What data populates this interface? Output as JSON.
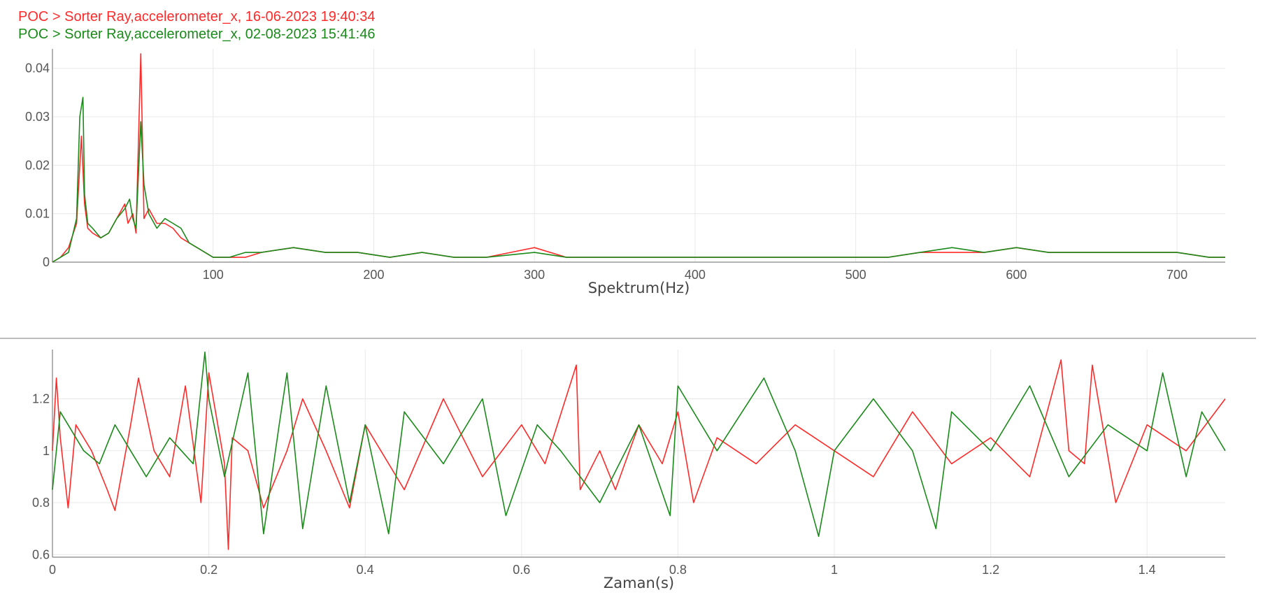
{
  "legend": {
    "series_a": "POC > Sorter Ray,accelerometer_x, 16-06-2023 19:40:34",
    "series_b": "POC > Sorter Ray,accelerometer_x, 02-08-2023 15:41:46"
  },
  "colors": {
    "series_a": "#ff2a2a",
    "series_b": "#1a8a1a",
    "grid": "#e8e8e8",
    "axis": "#9a9a9a",
    "divider": "#bdbdbd"
  },
  "chart_data": [
    {
      "type": "line",
      "xlabel": "Spektrum(Hz)",
      "ylabel": "",
      "xlim": [
        0,
        730
      ],
      "ylim": [
        0,
        0.044
      ],
      "x_ticks": [
        100,
        200,
        300,
        400,
        500,
        600,
        700
      ],
      "x_tick_labels": [
        "100",
        "200",
        "300",
        "400",
        "500",
        "600",
        "700"
      ],
      "y_ticks": [
        0,
        0.01,
        0.02,
        0.03,
        0.04
      ],
      "y_tick_labels": [
        "0",
        "0.01",
        "0.02",
        "0.03",
        "0.04"
      ],
      "grid": true,
      "series": [
        {
          "key": "series_a",
          "x": [
            0,
            5,
            10,
            15,
            18,
            20,
            22,
            25,
            30,
            35,
            40,
            45,
            47,
            50,
            52,
            55,
            57,
            60,
            65,
            70,
            75,
            80,
            85,
            90,
            95,
            100,
            110,
            120,
            130,
            150,
            170,
            190,
            210,
            230,
            250,
            270,
            300,
            320,
            340,
            360,
            380,
            400,
            420,
            440,
            460,
            480,
            500,
            520,
            540,
            560,
            580,
            600,
            620,
            640,
            660,
            680,
            700,
            720,
            730
          ],
          "values": [
            0,
            0.001,
            0.003,
            0.008,
            0.026,
            0.012,
            0.007,
            0.006,
            0.005,
            0.006,
            0.009,
            0.012,
            0.008,
            0.01,
            0.006,
            0.043,
            0.009,
            0.011,
            0.008,
            0.008,
            0.007,
            0.005,
            0.004,
            0.003,
            0.002,
            0.001,
            0.001,
            0.001,
            0.002,
            0.003,
            0.002,
            0.002,
            0.001,
            0.002,
            0.001,
            0.001,
            0.003,
            0.001,
            0.001,
            0.001,
            0.001,
            0.001,
            0.001,
            0.001,
            0.001,
            0.001,
            0.001,
            0.001,
            0.002,
            0.002,
            0.002,
            0.003,
            0.002,
            0.002,
            0.002,
            0.002,
            0.002,
            0.001,
            0.001
          ]
        },
        {
          "key": "series_b",
          "x": [
            0,
            5,
            10,
            15,
            17,
            19,
            20,
            22,
            25,
            30,
            35,
            40,
            45,
            48,
            50,
            52,
            55,
            57,
            60,
            65,
            70,
            75,
            80,
            85,
            90,
            95,
            100,
            110,
            120,
            130,
            150,
            170,
            190,
            210,
            230,
            250,
            270,
            300,
            320,
            340,
            360,
            380,
            400,
            420,
            440,
            460,
            480,
            500,
            520,
            540,
            560,
            580,
            600,
            620,
            640,
            660,
            680,
            700,
            720,
            730
          ],
          "values": [
            0,
            0.001,
            0.002,
            0.009,
            0.03,
            0.034,
            0.014,
            0.008,
            0.007,
            0.005,
            0.006,
            0.009,
            0.011,
            0.013,
            0.009,
            0.007,
            0.029,
            0.016,
            0.01,
            0.007,
            0.009,
            0.008,
            0.007,
            0.004,
            0.003,
            0.002,
            0.001,
            0.001,
            0.002,
            0.002,
            0.003,
            0.002,
            0.002,
            0.001,
            0.002,
            0.001,
            0.001,
            0.002,
            0.001,
            0.001,
            0.001,
            0.001,
            0.001,
            0.001,
            0.001,
            0.001,
            0.001,
            0.001,
            0.001,
            0.002,
            0.003,
            0.002,
            0.003,
            0.002,
            0.002,
            0.002,
            0.002,
            0.002,
            0.001,
            0.001
          ]
        }
      ]
    },
    {
      "type": "line",
      "xlabel": "Zaman(s)",
      "ylabel": "",
      "xlim": [
        0,
        1.5
      ],
      "ylim": [
        0.59,
        1.39
      ],
      "x_ticks": [
        0,
        0.2,
        0.4,
        0.6,
        0.8,
        1,
        1.2,
        1.4
      ],
      "x_tick_labels": [
        "0",
        "0.2",
        "0.4",
        "0.6",
        "0.8",
        "1",
        "1.2",
        "1.4"
      ],
      "y_ticks": [
        0.6,
        0.8,
        1,
        1.2
      ],
      "y_tick_labels": [
        "0.6",
        "0.8",
        "1",
        "1.2"
      ],
      "grid": true,
      "series": [
        {
          "key": "series_a",
          "x": [
            0,
            0.005,
            0.01,
            0.02,
            0.03,
            0.05,
            0.07,
            0.08,
            0.1,
            0.11,
            0.13,
            0.15,
            0.17,
            0.19,
            0.2,
            0.22,
            0.225,
            0.23,
            0.25,
            0.27,
            0.3,
            0.32,
            0.35,
            0.38,
            0.4,
            0.42,
            0.45,
            0.5,
            0.55,
            0.6,
            0.63,
            0.67,
            0.675,
            0.7,
            0.72,
            0.75,
            0.78,
            0.8,
            0.82,
            0.85,
            0.9,
            0.95,
            1,
            1.05,
            1.1,
            1.15,
            1.2,
            1.25,
            1.29,
            1.3,
            1.32,
            1.33,
            1.36,
            1.4,
            1.45,
            1.5
          ],
          "values": [
            1,
            1.28,
            1.05,
            0.78,
            1.1,
            1.0,
            0.85,
            0.77,
            1.1,
            1.28,
            1.0,
            0.9,
            1.25,
            0.8,
            1.3,
            0.95,
            0.62,
            1.05,
            1.0,
            0.78,
            1.0,
            1.2,
            1.0,
            0.78,
            1.1,
            1.0,
            0.85,
            1.2,
            0.9,
            1.1,
            0.95,
            1.33,
            0.85,
            1.0,
            0.85,
            1.1,
            0.95,
            1.15,
            0.8,
            1.05,
            0.95,
            1.1,
            1.0,
            0.9,
            1.15,
            0.95,
            1.05,
            0.9,
            1.35,
            1.0,
            0.95,
            1.33,
            0.8,
            1.1,
            1.0,
            1.2
          ]
        },
        {
          "key": "series_b",
          "x": [
            0,
            0.01,
            0.02,
            0.04,
            0.06,
            0.08,
            0.1,
            0.12,
            0.15,
            0.18,
            0.195,
            0.2,
            0.22,
            0.25,
            0.27,
            0.29,
            0.3,
            0.32,
            0.35,
            0.38,
            0.4,
            0.43,
            0.45,
            0.5,
            0.55,
            0.58,
            0.62,
            0.65,
            0.7,
            0.75,
            0.79,
            0.8,
            0.85,
            0.91,
            0.95,
            0.98,
            1.0,
            1.05,
            1.1,
            1.13,
            1.15,
            1.2,
            1.25,
            1.3,
            1.35,
            1.4,
            1.42,
            1.45,
            1.47,
            1.5
          ],
          "values": [
            0.85,
            1.15,
            1.1,
            1.0,
            0.95,
            1.1,
            1.0,
            0.9,
            1.05,
            0.95,
            1.38,
            1.2,
            0.9,
            1.3,
            0.68,
            1.1,
            1.3,
            0.7,
            1.25,
            0.8,
            1.1,
            0.68,
            1.15,
            0.95,
            1.2,
            0.75,
            1.1,
            1.0,
            0.8,
            1.1,
            0.75,
            1.25,
            1.0,
            1.28,
            1.0,
            0.67,
            1.0,
            1.2,
            1.0,
            0.7,
            1.15,
            1.0,
            1.25,
            0.9,
            1.1,
            1.0,
            1.3,
            0.9,
            1.15,
            1.0
          ]
        }
      ]
    }
  ]
}
